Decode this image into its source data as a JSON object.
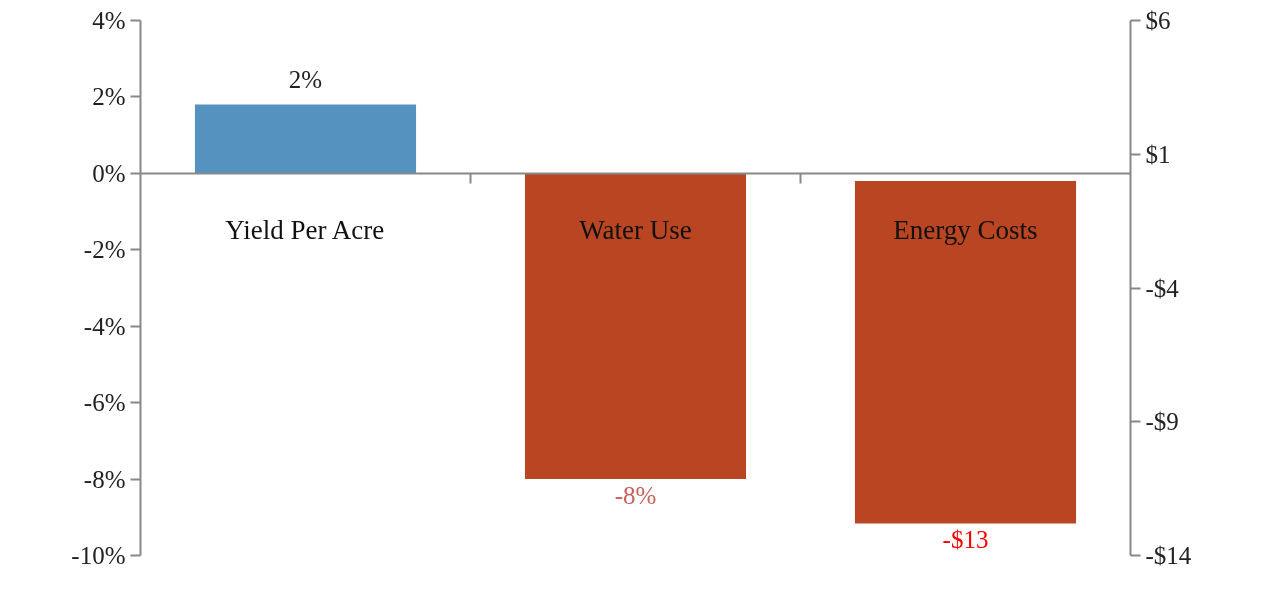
{
  "chart_data": {
    "type": "bar",
    "categories": [
      "Yield Per Acre",
      "Water Use",
      "Energy Costs"
    ],
    "series": [
      {
        "colors": [
          "#5592c0",
          "#b94522",
          null
        ],
        "values": [
          1.8,
          -8,
          null
        ],
        "value_labels": [
          "2%",
          "-8%",
          null
        ]
      },
      {
        "axis": "y2",
        "color": "#b94522",
        "values": [
          null,
          null,
          -12.8
        ],
        "value_labels": [
          null,
          null,
          "-$13"
        ]
      }
    ],
    "ylim": [
      -10,
      4
    ],
    "yticks": [
      {
        "value": 4,
        "label": "4%"
      },
      {
        "value": 2,
        "label": "2%"
      },
      {
        "value": 0,
        "label": "0%"
      },
      {
        "value": -2,
        "label": "-2%"
      },
      {
        "value": -4,
        "label": "-4%"
      },
      {
        "value": -6,
        "label": "-6%"
      },
      {
        "value": -8,
        "label": "-8%"
      },
      {
        "value": -10,
        "label": "-10%"
      }
    ],
    "y2lim": [
      -14,
      6
    ],
    "y2ticks": [
      {
        "value": 6,
        "label": "$6"
      },
      {
        "value": 1,
        "label": "$1"
      },
      {
        "value": -4,
        "label": "-$4"
      },
      {
        "value": -9,
        "label": "-$9"
      },
      {
        "value": -14,
        "label": "-$14"
      }
    ],
    "grid": false
  }
}
